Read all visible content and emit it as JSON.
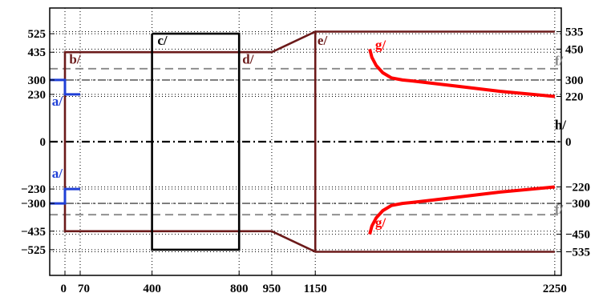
{
  "chart_data": {
    "type": "line",
    "xlabel": "",
    "ylabel": "",
    "xlim": [
      -70,
      2280
    ],
    "ylim": [
      -650,
      650
    ],
    "grid": true,
    "x_ticks": [
      {
        "value": 0,
        "label": "0"
      },
      {
        "value": 70,
        "label": "70"
      },
      {
        "value": 400,
        "label": "400"
      },
      {
        "value": 800,
        "label": "800"
      },
      {
        "value": 950,
        "label": "950"
      },
      {
        "value": 1150,
        "label": "1150"
      },
      {
        "value": 2250,
        "label": "2250"
      }
    ],
    "y_ticks_left": [
      {
        "value": 525,
        "label": "525"
      },
      {
        "value": 435,
        "label": "435"
      },
      {
        "value": 300,
        "label": "300"
      },
      {
        "value": 230,
        "label": "230"
      },
      {
        "value": 0,
        "label": "0"
      },
      {
        "value": -230,
        "label": "−230"
      },
      {
        "value": -300,
        "label": "−300"
      },
      {
        "value": -435,
        "label": "−435"
      },
      {
        "value": -525,
        "label": "−525"
      }
    ],
    "y_ticks_right": [
      {
        "value": 535,
        "label": "535"
      },
      {
        "value": 450,
        "label": "450"
      },
      {
        "value": 300,
        "label": "300"
      },
      {
        "value": 220,
        "label": "220"
      },
      {
        "value": 0,
        "label": "0"
      },
      {
        "value": -220,
        "label": "−220"
      },
      {
        "value": -300,
        "label": "−300"
      },
      {
        "value": -450,
        "label": "−450"
      },
      {
        "value": -535,
        "label": "−535"
      }
    ],
    "series": [
      {
        "key": "b",
        "color": "#6b1a1a",
        "width": 2.6,
        "x": [
          0,
          0,
          70,
          400,
          800,
          950,
          1150,
          1150,
          2250
        ],
        "y": [
          0,
          435,
          435,
          435,
          435,
          435,
          535,
          535,
          535
        ]
      },
      {
        "key": "b-neg",
        "color": "#6b1a1a",
        "width": 2.6,
        "x": [
          0,
          0,
          70,
          400,
          800,
          950,
          1150,
          1150,
          2250
        ],
        "y": [
          0,
          -435,
          -435,
          -435,
          -435,
          -435,
          -535,
          -535,
          -535
        ]
      },
      {
        "key": "b-mid",
        "color": "#6b1a1a",
        "width": 2.6,
        "x": [
          800,
          950
        ],
        "y": [
          435,
          435
        ]
      },
      {
        "key": "e-drop",
        "color": "#6b1a1a",
        "width": 2.6,
        "x": [
          1150,
          1150
        ],
        "y": [
          535,
          -535
        ]
      },
      {
        "key": "c",
        "color": "#000000",
        "width": 2.6,
        "x": [
          400,
          800,
          800,
          400,
          400
        ],
        "y": [
          525,
          525,
          -525,
          -525,
          525
        ]
      },
      {
        "key": "a",
        "color": "#1f3fd6",
        "width": 3,
        "x": [
          -70,
          0,
          0,
          70
        ],
        "y": [
          300,
          300,
          230,
          230
        ]
      },
      {
        "key": "a-neg",
        "color": "#1f3fd6",
        "width": 3,
        "x": [
          -70,
          0,
          0,
          70
        ],
        "y": [
          -300,
          -300,
          -230,
          -230
        ]
      },
      {
        "key": "g",
        "color": "#ff0000",
        "width": 4,
        "x": [
          1400,
          1410,
          1430,
          1460,
          1500,
          1550,
          1600,
          1800,
          2000,
          2250
        ],
        "y": [
          450,
          410,
          370,
          335,
          310,
          300,
          295,
          270,
          245,
          220
        ]
      },
      {
        "key": "g-neg",
        "color": "#ff0000",
        "width": 4,
        "x": [
          1400,
          1410,
          1430,
          1460,
          1500,
          1550,
          1600,
          1800,
          2000,
          2250
        ],
        "y": [
          -450,
          -410,
          -370,
          -335,
          -310,
          -300,
          -295,
          -270,
          -245,
          -220
        ]
      }
    ],
    "reference_lines": [
      {
        "key": "f",
        "y": 355,
        "color": "#888888",
        "dash": "10,6"
      },
      {
        "key": "f-neg",
        "y": -355,
        "color": "#888888",
        "dash": "10,6"
      },
      {
        "key": "ref300",
        "y": 300,
        "color": "#777777",
        "dash": "10,4,2,4"
      },
      {
        "key": "ref300-neg",
        "y": -300,
        "color": "#777777",
        "dash": "10,4,2,4"
      },
      {
        "key": "h",
        "y": 0,
        "color": "#000000",
        "dash": "10,4,2,4"
      }
    ],
    "annotations": [
      {
        "text": "a/",
        "x": -60,
        "y": 175,
        "color": "#1f3fd6"
      },
      {
        "text": "a/",
        "x": -60,
        "y": -175,
        "color": "#1f3fd6"
      },
      {
        "text": "b/",
        "x": 20,
        "y": 380,
        "color": "#6b1a1a"
      },
      {
        "text": "c/",
        "x": 425,
        "y": 470,
        "color": "#000000"
      },
      {
        "text": "d/",
        "x": 815,
        "y": 380,
        "color": "#6b1a1a"
      },
      {
        "text": "e/",
        "x": 1160,
        "y": 470,
        "color": "#6b1a1a"
      },
      {
        "text": "g/",
        "x": 1425,
        "y": 450,
        "color": "#ff0000"
      },
      {
        "text": "g/",
        "x": 1425,
        "y": -415,
        "color": "#ff0000"
      },
      {
        "text": "f/",
        "x": 2250,
        "y": 372,
        "color": "#888888"
      },
      {
        "text": "f/",
        "x": 2250,
        "y": -350,
        "color": "#888888"
      },
      {
        "text": "h/",
        "x": 2250,
        "y": 60,
        "color": "#000000"
      }
    ]
  }
}
